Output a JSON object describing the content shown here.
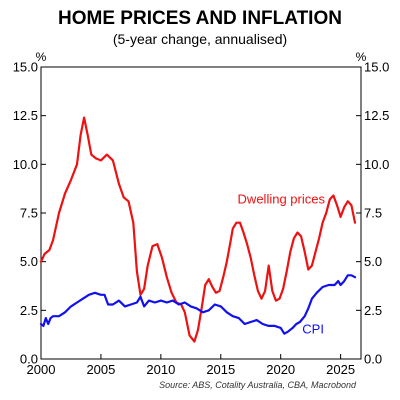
{
  "chart_data": {
    "type": "line",
    "title": "HOME PRICES AND INFLATION",
    "subtitle": "(5-year change, annualised)",
    "y_unit_left": "%",
    "y_unit_right": "%",
    "source": "Source: ABS, Cotality Australia, CBA, Macrobond",
    "xlim": [
      2000,
      2026.7
    ],
    "ylim": [
      0,
      15
    ],
    "x_ticks": [
      2000,
      2005,
      2010,
      2015,
      2020,
      2025
    ],
    "y_ticks": [
      "0.0",
      "2.5",
      "5.0",
      "7.5",
      "10.0",
      "12.5",
      "15.0"
    ],
    "grid": false,
    "series": [
      {
        "name": "Dwelling prices",
        "color": "#ee1111",
        "x": [
          2000.0,
          2000.3,
          2000.7,
          2001.0,
          2001.5,
          2002.0,
          2002.5,
          2003.0,
          2003.3,
          2003.6,
          2003.9,
          2004.2,
          2004.6,
          2005.0,
          2005.5,
          2006.0,
          2006.5,
          2006.9,
          2007.3,
          2007.7,
          2008.0,
          2008.3,
          2008.6,
          2008.9,
          2009.3,
          2009.7,
          2010.1,
          2010.5,
          2010.9,
          2011.3,
          2011.7,
          2012.0,
          2012.4,
          2012.8,
          2013.1,
          2013.4,
          2013.7,
          2014.0,
          2014.3,
          2014.6,
          2014.9,
          2015.2,
          2015.5,
          2015.8,
          2016.0,
          2016.3,
          2016.6,
          2016.9,
          2017.2,
          2017.5,
          2017.8,
          2018.1,
          2018.4,
          2018.7,
          2019.0,
          2019.3,
          2019.6,
          2019.9,
          2020.2,
          2020.5,
          2020.8,
          2021.1,
          2021.4,
          2021.7,
          2022.0,
          2022.3,
          2022.6,
          2022.9,
          2023.2,
          2023.5,
          2023.8,
          2024.1,
          2024.4,
          2024.7,
          2025.0,
          2025.3,
          2025.6,
          2025.9,
          2026.2
        ],
        "values": [
          5.0,
          5.4,
          5.6,
          6.1,
          7.5,
          8.5,
          9.2,
          10.0,
          11.5,
          12.4,
          11.5,
          10.5,
          10.3,
          10.2,
          10.5,
          10.2,
          9.0,
          8.3,
          8.1,
          7.0,
          4.5,
          3.3,
          3.6,
          4.8,
          5.8,
          5.9,
          5.2,
          4.2,
          3.4,
          2.9,
          2.8,
          2.4,
          1.2,
          0.9,
          1.5,
          2.6,
          3.8,
          4.1,
          3.7,
          3.4,
          3.5,
          4.2,
          5.0,
          6.0,
          6.7,
          7.0,
          7.0,
          6.5,
          5.9,
          5.2,
          4.3,
          3.5,
          3.1,
          3.5,
          4.8,
          3.5,
          3.0,
          3.1,
          3.6,
          4.5,
          5.5,
          6.2,
          6.5,
          6.3,
          5.5,
          4.6,
          4.8,
          5.5,
          6.2,
          7.0,
          7.5,
          8.2,
          8.4,
          7.9,
          7.3,
          7.8,
          8.1,
          7.9,
          7.0
        ]
      },
      {
        "name": "CPI",
        "color": "#1111ee",
        "x": [
          2000.0,
          2000.2,
          2000.4,
          2000.6,
          2000.8,
          2001.0,
          2001.5,
          2002.0,
          2002.5,
          2003.0,
          2003.5,
          2004.0,
          2004.5,
          2005.0,
          2005.3,
          2005.6,
          2006.0,
          2006.5,
          2007.0,
          2007.5,
          2008.0,
          2008.3,
          2008.6,
          2009.0,
          2009.5,
          2010.0,
          2010.5,
          2011.0,
          2011.5,
          2012.0,
          2012.5,
          2013.0,
          2013.5,
          2014.0,
          2014.5,
          2015.0,
          2015.5,
          2016.0,
          2016.5,
          2017.0,
          2017.5,
          2018.0,
          2018.5,
          2019.0,
          2019.5,
          2020.0,
          2020.3,
          2020.6,
          2021.0,
          2021.3,
          2021.6,
          2022.0,
          2022.3,
          2022.6,
          2023.0,
          2023.5,
          2024.0,
          2024.5,
          2024.8,
          2025.0,
          2025.3,
          2025.6,
          2025.9,
          2026.2
        ],
        "values": [
          1.8,
          1.7,
          2.1,
          1.8,
          2.1,
          2.2,
          2.2,
          2.4,
          2.7,
          2.9,
          3.1,
          3.3,
          3.4,
          3.3,
          3.3,
          2.8,
          2.8,
          3.0,
          2.7,
          2.8,
          2.9,
          3.2,
          2.7,
          3.0,
          2.9,
          3.0,
          2.9,
          3.0,
          2.8,
          2.9,
          2.7,
          2.6,
          2.4,
          2.5,
          2.8,
          2.7,
          2.4,
          2.2,
          2.1,
          1.8,
          1.9,
          2.0,
          1.8,
          1.7,
          1.7,
          1.6,
          1.3,
          1.4,
          1.6,
          1.8,
          1.9,
          2.2,
          2.6,
          3.1,
          3.4,
          3.7,
          3.8,
          3.8,
          4.0,
          3.8,
          4.0,
          4.3,
          4.3,
          4.2
        ]
      }
    ],
    "labels": [
      {
        "text": "Dwelling prices",
        "series": 0,
        "x": 2016.4,
        "y": 8.0
      },
      {
        "text": "CPI",
        "series": 1,
        "x": 2021.8,
        "y": 1.3
      }
    ]
  }
}
